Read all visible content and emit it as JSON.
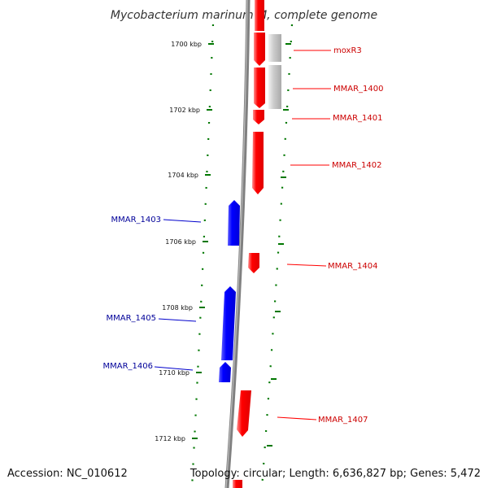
{
  "map": {
    "title": "Mycobacterium marinum M, complete genome",
    "accession_text": "Accession: NC_010612",
    "topology_text": "Topology: circular; Length: 6,636,827 bp; Genes: 5,472"
  },
  "scale": {
    "unit": "kbp",
    "ticks": [
      "1700 kbp",
      "1702 kbp",
      "1704 kbp",
      "1706 kbp",
      "1708 kbp",
      "1710 kbp",
      "1712 kbp"
    ]
  },
  "colors": {
    "forward_gene": "#ff0000",
    "reverse_gene": "#0000ff",
    "other_feature": "#c0c0c0",
    "backbone": "#808080",
    "ruler": "#007700",
    "forward_label": "#cc0000",
    "reverse_label": "#000099"
  },
  "genes": [
    {
      "label": "moxR3",
      "strand": "forward"
    },
    {
      "label": "MMAR_1400",
      "strand": "forward"
    },
    {
      "label": "MMAR_1401",
      "strand": "forward"
    },
    {
      "label": "MMAR_1402",
      "strand": "forward"
    },
    {
      "label": "MMAR_1403",
      "strand": "reverse"
    },
    {
      "label": "MMAR_1404",
      "strand": "forward"
    },
    {
      "label": "MMAR_1405",
      "strand": "reverse"
    },
    {
      "label": "MMAR_1406",
      "strand": "reverse"
    },
    {
      "label": "MMAR_1407",
      "strand": "forward"
    }
  ]
}
